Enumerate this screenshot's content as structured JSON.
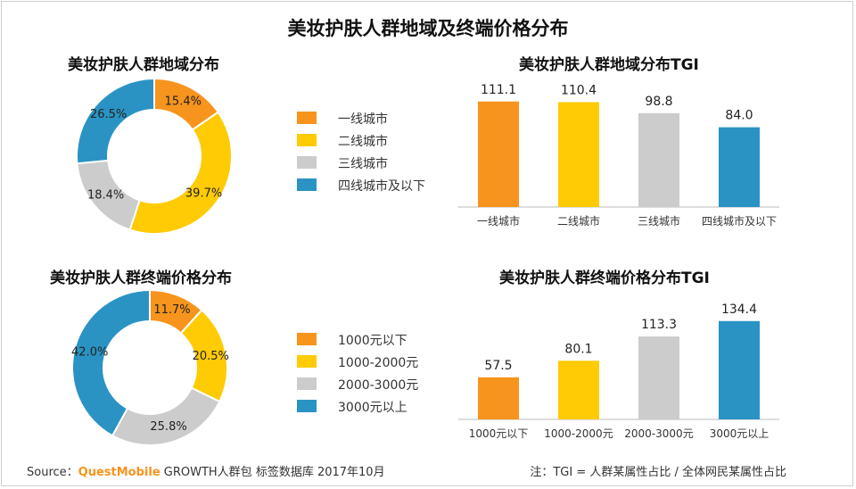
{
  "title": "美妆护肤人群地域及终端价格分布",
  "colors": {
    "c1": "#f7941d",
    "c2": "#ffcb05",
    "c3": "#cccccc",
    "c4": "#2a93c4"
  },
  "footer": {
    "source_label": "Source：",
    "brand": "QuestMobile",
    "source_rest": " GROWTH人群包 标签数据库 2017年10月",
    "note": "注：TGI = 人群某属性占比 / 全体网民某属性占比"
  },
  "chart_data": [
    {
      "type": "pie",
      "title": "美妆护肤人群地域分布",
      "categories": [
        "一线城市",
        "二线城市",
        "三线城市",
        "四线城市及以下"
      ],
      "values": [
        15.4,
        39.7,
        18.4,
        26.5
      ],
      "labels": [
        "15.4%",
        "39.7%",
        "18.4%",
        "26.5%"
      ],
      "donut": true
    },
    {
      "type": "bar",
      "title": "美妆护肤人群地域分布TGI",
      "categories": [
        "一线城市",
        "二线城市",
        "三线城市",
        "四线城市及以下"
      ],
      "values": [
        111.1,
        110.4,
        98.8,
        84.0
      ],
      "labels": [
        "111.1",
        "110.4",
        "98.8",
        "84.0"
      ],
      "ylim": [
        0,
        140
      ]
    },
    {
      "type": "pie",
      "title": "美妆护肤人群终端价格分布",
      "categories": [
        "1000元以下",
        "1000-2000元",
        "2000-3000元",
        "3000元以上"
      ],
      "values": [
        11.7,
        20.5,
        25.8,
        42.0
      ],
      "labels": [
        "11.7%",
        "20.5%",
        "25.8%",
        "42.0%"
      ],
      "donut": true
    },
    {
      "type": "bar",
      "title": "美妆护肤人群终端价格分布TGI",
      "categories": [
        "1000元以下",
        "1000-2000元",
        "2000-3000元",
        "3000元以上"
      ],
      "values": [
        57.5,
        80.1,
        113.3,
        134.4
      ],
      "labels": [
        "57.5",
        "80.1",
        "113.3",
        "134.4"
      ],
      "ylim": [
        0,
        150
      ]
    }
  ]
}
